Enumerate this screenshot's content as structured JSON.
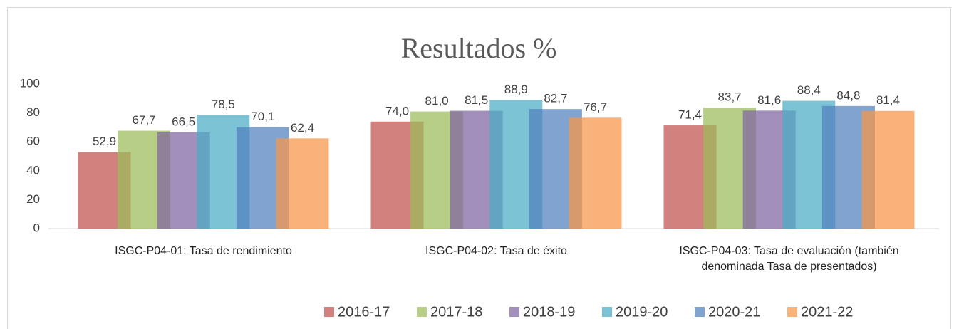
{
  "chart_data": {
    "type": "bar",
    "title": "Resultados %",
    "categories": [
      "ISGC-P04-01: Tasa de rendimiento",
      "ISGC-P04-02: Tasa de éxito",
      "ISGC-P04-03: Tasa de evaluación (también denominada Tasa de presentados)"
    ],
    "series": [
      {
        "name": "2016-17",
        "color": "#c0504d",
        "values": [
          52.9,
          74.0,
          71.4
        ],
        "value_labels": [
          "52,9",
          "74,0",
          "71,4"
        ]
      },
      {
        "name": "2017-18",
        "color": "#9bbb59",
        "values": [
          67.7,
          81.0,
          83.7
        ],
        "value_labels": [
          "67,7",
          "81,0",
          "83,7"
        ]
      },
      {
        "name": "2018-19",
        "color": "#8064a2",
        "values": [
          66.5,
          81.5,
          81.6
        ],
        "value_labels": [
          "66,5",
          "81,5",
          "81,6"
        ]
      },
      {
        "name": "2019-20",
        "color": "#4bacc6",
        "values": [
          78.5,
          88.9,
          88.4
        ],
        "value_labels": [
          "78,5",
          "88,9",
          "88,4"
        ]
      },
      {
        "name": "2020-21",
        "color": "#4f81bd",
        "values": [
          70.1,
          82.7,
          84.8
        ],
        "value_labels": [
          "70,1",
          "82,7",
          "84,8"
        ]
      },
      {
        "name": "2021-22",
        "color": "#f79646",
        "values": [
          62.4,
          76.7,
          81.4
        ],
        "value_labels": [
          "62,4",
          "76,7",
          "81,4"
        ]
      }
    ],
    "ylim": [
      0,
      100
    ],
    "yticks": [
      0,
      20,
      40,
      60,
      80,
      100
    ],
    "grid": false,
    "legend": "bottom"
  }
}
